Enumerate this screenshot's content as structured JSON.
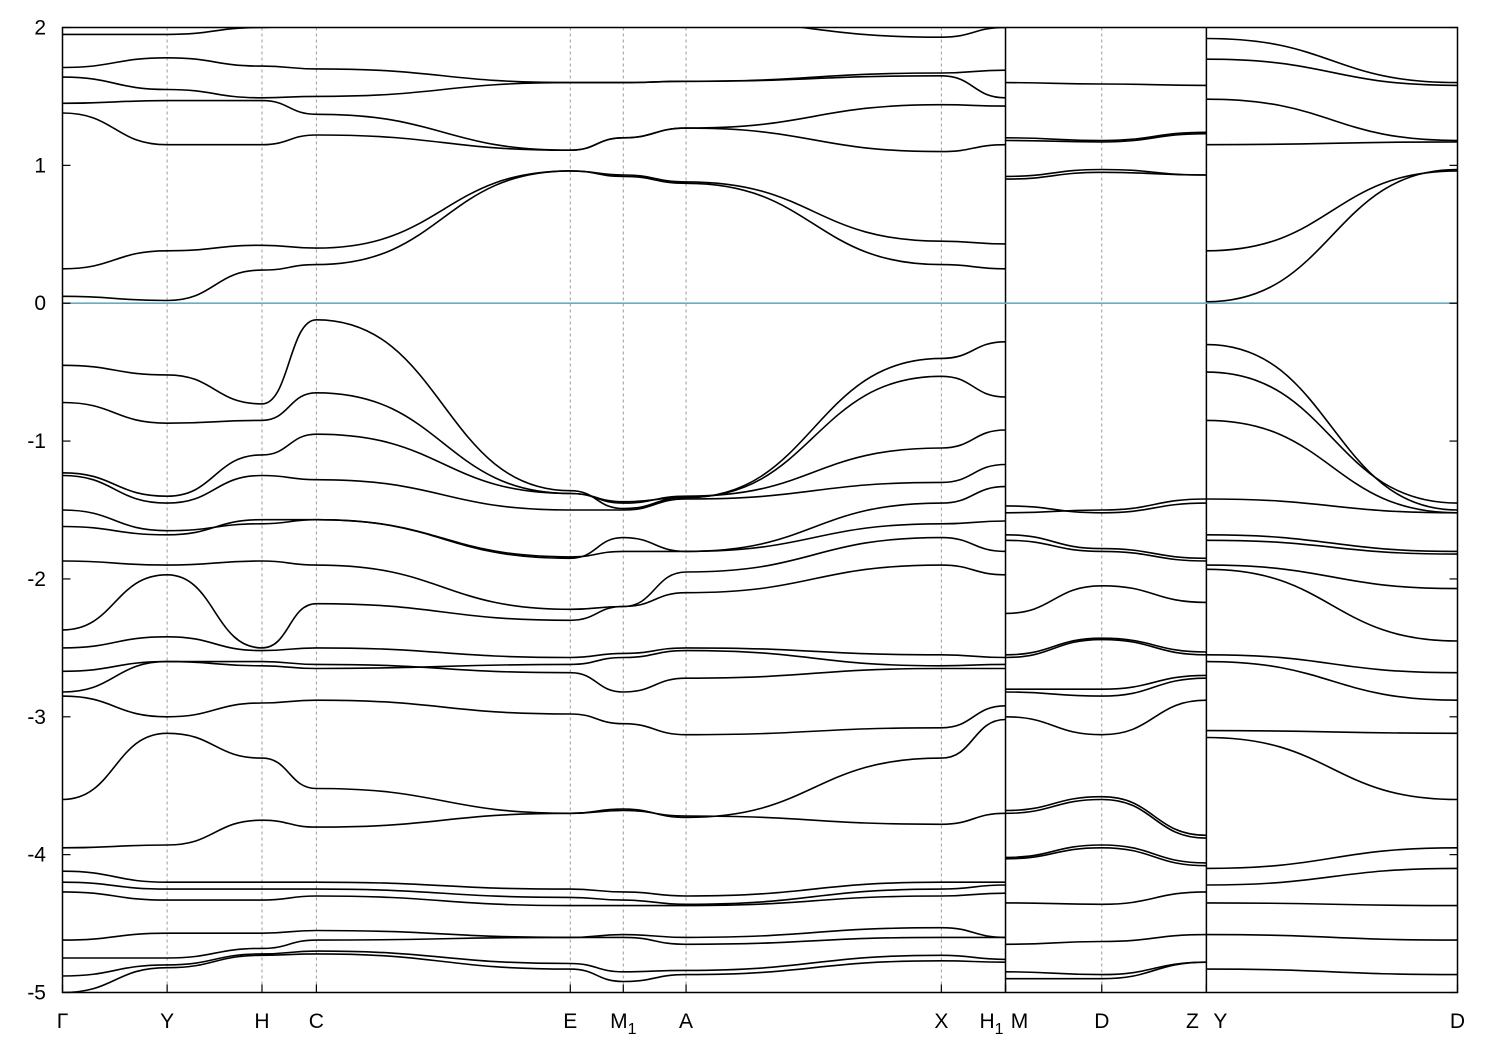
{
  "chart_data": {
    "type": "line",
    "title": "",
    "xlabel": "",
    "ylabel": "",
    "ylim": [
      -5,
      2
    ],
    "y_ticks": [
      "2",
      "1",
      "0",
      "-1",
      "-2",
      "-3",
      "-4",
      "-5"
    ],
    "fermi_level": 0,
    "fermi_color": "#5fb0c8",
    "band_color": "#000000",
    "kpath_labels": [
      "Γ",
      "Y",
      "H",
      "C",
      "E",
      "M",
      "A",
      "X",
      "H",
      "M",
      "D",
      "Z",
      "Y",
      "D"
    ],
    "kpath_subscripts": [
      "",
      "",
      "",
      "",
      "",
      "1",
      "",
      "",
      "1",
      "",
      "",
      "",
      "",
      ""
    ],
    "k_points": [
      0,
      75,
      143,
      182,
      364,
      402,
      447,
      630,
      676,
      676,
      745,
      820,
      820,
      1000
    ],
    "grid": "dashed vertical lines at high-symmetry points",
    "path_segments": [
      [
        0,
        676
      ],
      [
        676,
        820
      ],
      [
        820,
        1000
      ]
    ],
    "series": [
      {
        "x": [
          0,
          75,
          143,
          182,
          364,
          402,
          447,
          630,
          676
        ],
        "values": [
          -5.0,
          -4.82,
          -4.73,
          -4.72,
          -4.83,
          -4.92,
          -4.87,
          -4.77,
          -4.78
        ]
      },
      {
        "x": [
          0,
          75,
          143,
          182,
          364,
          402,
          447,
          630,
          676
        ],
        "values": [
          -4.88,
          -4.8,
          -4.72,
          -4.7,
          -4.79,
          -4.85,
          -4.84,
          -4.73,
          -4.76
        ]
      },
      {
        "x": [
          0,
          75,
          143,
          182,
          364,
          402,
          447,
          630,
          676
        ],
        "values": [
          -4.75,
          -4.75,
          -4.68,
          -4.62,
          -4.6,
          -4.6,
          -4.65,
          -4.6,
          -4.6
        ]
      },
      {
        "x": [
          0,
          75,
          143,
          182,
          364,
          402,
          447,
          630,
          676
        ],
        "values": [
          -4.62,
          -4.57,
          -4.57,
          -4.55,
          -4.6,
          -4.58,
          -4.6,
          -4.53,
          -4.6
        ]
      },
      {
        "x": [
          0,
          75,
          143,
          182,
          364,
          402,
          447,
          630,
          676
        ],
        "values": [
          -4.27,
          -4.33,
          -4.33,
          -4.3,
          -4.37,
          -4.37,
          -4.37,
          -4.3,
          -4.28
        ]
      },
      {
        "x": [
          0,
          75,
          143,
          182,
          364,
          402,
          447,
          630,
          676
        ],
        "values": [
          -4.2,
          -4.25,
          -4.25,
          -4.25,
          -4.31,
          -4.33,
          -4.36,
          -4.25,
          -4.22
        ]
      },
      {
        "x": [
          0,
          75,
          143,
          182,
          364,
          402,
          447,
          630,
          676
        ],
        "values": [
          -4.12,
          -4.2,
          -4.2,
          -4.2,
          -4.25,
          -4.27,
          -4.3,
          -4.2,
          -4.2
        ]
      },
      {
        "x": [
          0,
          75,
          143,
          182,
          364,
          402,
          447,
          630,
          676
        ],
        "values": [
          -3.95,
          -3.93,
          -3.75,
          -3.8,
          -3.7,
          -3.68,
          -3.72,
          -3.78,
          -3.7
        ]
      },
      {
        "x": [
          0,
          75,
          143,
          182,
          364,
          402,
          447,
          630,
          676
        ],
        "values": [
          -3.6,
          -3.12,
          -3.3,
          -3.52,
          -3.7,
          -3.67,
          -3.73,
          -3.3,
          -3.02
        ]
      },
      {
        "x": [
          0,
          75,
          143,
          182,
          364,
          402,
          447,
          630,
          676
        ],
        "values": [
          -2.85,
          -3.0,
          -2.9,
          -2.88,
          -2.98,
          -3.05,
          -3.13,
          -3.08,
          -2.92
        ]
      },
      {
        "x": [
          0,
          75,
          143,
          182,
          364,
          402,
          447,
          630,
          676
        ],
        "values": [
          -2.82,
          -2.6,
          -2.6,
          -2.62,
          -2.68,
          -2.82,
          -2.72,
          -2.65,
          -2.65
        ]
      },
      {
        "x": [
          0,
          75,
          143,
          182,
          364,
          402,
          447,
          630,
          676
        ],
        "values": [
          -2.67,
          -2.6,
          -2.63,
          -2.65,
          -2.62,
          -2.57,
          -2.52,
          -2.63,
          -2.62
        ]
      },
      {
        "x": [
          0,
          75,
          143,
          182,
          364,
          402,
          447,
          630,
          676
        ],
        "values": [
          -2.5,
          -2.42,
          -2.52,
          -2.5,
          -2.57,
          -2.54,
          -2.5,
          -2.55,
          -2.57
        ]
      },
      {
        "x": [
          0,
          75,
          143,
          182,
          364,
          402,
          447,
          630,
          676
        ],
        "values": [
          -2.37,
          -1.97,
          -2.5,
          -2.18,
          -2.3,
          -2.2,
          -2.1,
          -1.9,
          -1.97
        ]
      },
      {
        "x": [
          0,
          75,
          143,
          182,
          364,
          402,
          447,
          630,
          676
        ],
        "values": [
          -1.87,
          -1.9,
          -1.87,
          -1.9,
          -2.22,
          -2.2,
          -1.95,
          -1.7,
          -1.8
        ]
      },
      {
        "x": [
          0,
          75,
          143,
          182,
          364,
          402,
          447,
          630,
          676
        ],
        "values": [
          -1.62,
          -1.68,
          -1.57,
          -1.57,
          -1.85,
          -1.7,
          -1.8,
          -1.6,
          -1.58
        ]
      },
      {
        "x": [
          0,
          75,
          143,
          182,
          364,
          402,
          447,
          630,
          676
        ],
        "values": [
          -1.5,
          -1.65,
          -1.6,
          -1.57,
          -1.84,
          -1.8,
          -1.8,
          -1.45,
          -1.33
        ]
      },
      {
        "x": [
          0,
          75,
          143,
          182,
          364,
          402,
          447,
          630,
          676
        ],
        "values": [
          -1.25,
          -1.45,
          -1.25,
          -1.28,
          -1.5,
          -1.5,
          -1.42,
          -1.3,
          -1.17
        ]
      },
      {
        "x": [
          0,
          75,
          143,
          182,
          364,
          402,
          447,
          630,
          676
        ],
        "values": [
          -1.23,
          -1.4,
          -1.1,
          -0.95,
          -1.38,
          -1.45,
          -1.4,
          -1.05,
          -0.92
        ]
      },
      {
        "x": [
          0,
          75,
          143,
          182,
          364,
          402,
          447,
          630,
          676
        ],
        "values": [
          -0.72,
          -0.87,
          -0.85,
          -0.65,
          -1.38,
          -1.44,
          -1.41,
          -0.53,
          -0.68
        ]
      },
      {
        "x": [
          0,
          75,
          143,
          182,
          364,
          402,
          447,
          630,
          676
        ],
        "values": [
          -0.45,
          -0.52,
          -0.73,
          -0.12,
          -1.36,
          -1.49,
          -1.41,
          -0.4,
          -0.28
        ]
      },
      {
        "x": [
          0,
          75,
          143,
          182,
          364,
          402,
          447,
          630,
          676
        ],
        "values": [
          0.05,
          0.02,
          0.24,
          0.28,
          0.96,
          0.92,
          0.87,
          0.28,
          0.25
        ]
      },
      {
        "x": [
          0,
          75,
          143,
          182,
          364,
          402,
          447,
          630,
          676
        ],
        "values": [
          0.25,
          0.38,
          0.42,
          0.4,
          0.96,
          0.93,
          0.88,
          0.45,
          0.43
        ]
      },
      {
        "x": [
          0,
          75,
          143,
          182,
          364,
          402,
          447,
          630,
          676
        ],
        "values": [
          1.38,
          1.15,
          1.15,
          1.22,
          1.11,
          1.2,
          1.27,
          1.1,
          1.15
        ]
      },
      {
        "x": [
          0,
          75,
          143,
          182,
          364,
          402,
          447,
          630,
          676
        ],
        "values": [
          1.45,
          1.47,
          1.47,
          1.37,
          1.11,
          1.2,
          1.27,
          1.44,
          1.43
        ]
      },
      {
        "x": [
          0,
          75,
          143,
          182,
          364,
          402,
          447,
          630,
          676
        ],
        "values": [
          1.64,
          1.55,
          1.49,
          1.5,
          1.6,
          1.6,
          1.61,
          1.65,
          1.49
        ]
      },
      {
        "x": [
          0,
          75,
          143,
          182,
          364,
          402,
          447,
          630,
          676
        ],
        "values": [
          1.71,
          1.78,
          1.72,
          1.7,
          1.6,
          1.6,
          1.61,
          1.67,
          1.69
        ]
      },
      {
        "x": [
          0,
          75,
          143,
          182,
          364,
          402,
          447,
          630,
          676
        ],
        "values": [
          1.95,
          1.95,
          2.0,
          2.05,
          2.05,
          2.05,
          2.05,
          1.93,
          2.0
        ]
      },
      {
        "x": [
          676,
          745,
          820
        ],
        "values": [
          -4.9,
          -4.9,
          -4.78
        ]
      },
      {
        "x": [
          676,
          745,
          820
        ],
        "values": [
          -4.85,
          -4.87,
          -4.78
        ]
      },
      {
        "x": [
          676,
          745,
          820
        ],
        "values": [
          -4.65,
          -4.63,
          -4.58
        ]
      },
      {
        "x": [
          676,
          745,
          820
        ],
        "values": [
          -4.35,
          -4.36,
          -4.27
        ]
      },
      {
        "x": [
          676,
          745,
          820
        ],
        "values": [
          -4.03,
          -3.95,
          -4.08
        ]
      },
      {
        "x": [
          676,
          745,
          820
        ],
        "values": [
          -4.02,
          -3.93,
          -4.06
        ]
      },
      {
        "x": [
          676,
          745,
          820
        ],
        "values": [
          -3.7,
          -3.6,
          -3.88
        ]
      },
      {
        "x": [
          676,
          745,
          820
        ],
        "values": [
          -3.68,
          -3.58,
          -3.86
        ]
      },
      {
        "x": [
          676,
          745,
          820
        ],
        "values": [
          -3.0,
          -3.13,
          -2.88
        ]
      },
      {
        "x": [
          676,
          745,
          820
        ],
        "values": [
          -2.82,
          -2.85,
          -2.72
        ]
      },
      {
        "x": [
          676,
          745,
          820
        ],
        "values": [
          -2.8,
          -2.8,
          -2.7
        ]
      },
      {
        "x": [
          676,
          745,
          820
        ],
        "values": [
          -2.57,
          -2.44,
          -2.55
        ]
      },
      {
        "x": [
          676,
          745,
          820
        ],
        "values": [
          -2.55,
          -2.43,
          -2.53
        ]
      },
      {
        "x": [
          676,
          745,
          820
        ],
        "values": [
          -2.25,
          -2.05,
          -2.17
        ]
      },
      {
        "x": [
          676,
          745,
          820
        ],
        "values": [
          -1.72,
          -1.8,
          -1.87
        ]
      },
      {
        "x": [
          676,
          745,
          820
        ],
        "values": [
          -1.68,
          -1.78,
          -1.85
        ]
      },
      {
        "x": [
          676,
          745,
          820
        ],
        "values": [
          -1.52,
          -1.5,
          -1.42
        ]
      },
      {
        "x": [
          676,
          745,
          820
        ],
        "values": [
          -1.47,
          -1.52,
          -1.45
        ]
      },
      {
        "x": [
          676,
          745,
          820
        ],
        "values": [
          0.9,
          0.95,
          0.93
        ]
      },
      {
        "x": [
          676,
          745,
          820
        ],
        "values": [
          0.92,
          0.97,
          0.93
        ]
      },
      {
        "x": [
          676,
          745,
          820
        ],
        "values": [
          1.18,
          1.17,
          1.23
        ]
      },
      {
        "x": [
          676,
          745,
          820
        ],
        "values": [
          1.2,
          1.18,
          1.24
        ]
      },
      {
        "x": [
          676,
          745,
          820
        ],
        "values": [
          1.6,
          1.59,
          1.58
        ]
      },
      {
        "x": [
          820,
          1000
        ],
        "values": [
          -4.83,
          -4.87
        ]
      },
      {
        "x": [
          820,
          1000
        ],
        "values": [
          -4.58,
          -4.62
        ]
      },
      {
        "x": [
          820,
          1000
        ],
        "values": [
          -4.35,
          -4.37
        ]
      },
      {
        "x": [
          820,
          1000
        ],
        "values": [
          -4.22,
          -4.1
        ]
      },
      {
        "x": [
          820,
          1000
        ],
        "values": [
          -4.1,
          -3.95
        ]
      },
      {
        "x": [
          820,
          1000
        ],
        "values": [
          -3.15,
          -3.6
        ]
      },
      {
        "x": [
          820,
          1000
        ],
        "values": [
          -3.1,
          -3.12
        ]
      },
      {
        "x": [
          820,
          1000
        ],
        "values": [
          -2.6,
          -2.88
        ]
      },
      {
        "x": [
          820,
          1000
        ],
        "values": [
          -2.55,
          -2.68
        ]
      },
      {
        "x": [
          820,
          1000
        ],
        "values": [
          -1.93,
          -2.45
        ]
      },
      {
        "x": [
          820,
          1000
        ],
        "values": [
          -1.9,
          -2.07
        ]
      },
      {
        "x": [
          820,
          1000
        ],
        "values": [
          -1.72,
          -1.82
        ]
      },
      {
        "x": [
          820,
          1000
        ],
        "values": [
          -1.68,
          -1.8
        ]
      },
      {
        "x": [
          820,
          1000
        ],
        "values": [
          -1.42,
          -1.52
        ]
      },
      {
        "x": [
          820,
          1000
        ],
        "values": [
          -0.85,
          -1.52
        ]
      },
      {
        "x": [
          820,
          1000
        ],
        "values": [
          -0.5,
          -1.45
        ]
      },
      {
        "x": [
          820,
          1000
        ],
        "values": [
          -0.3,
          -1.5
        ]
      },
      {
        "x": [
          820,
          1000
        ],
        "values": [
          0.01,
          0.97
        ]
      },
      {
        "x": [
          820,
          1000
        ],
        "values": [
          0.38,
          0.96
        ]
      },
      {
        "x": [
          820,
          1000
        ],
        "values": [
          1.15,
          1.17
        ]
      },
      {
        "x": [
          820,
          1000
        ],
        "values": [
          1.48,
          1.18
        ]
      },
      {
        "x": [
          820,
          1000
        ],
        "values": [
          1.77,
          1.58
        ]
      },
      {
        "x": [
          820,
          1000
        ],
        "values": [
          1.92,
          1.6
        ]
      }
    ]
  }
}
